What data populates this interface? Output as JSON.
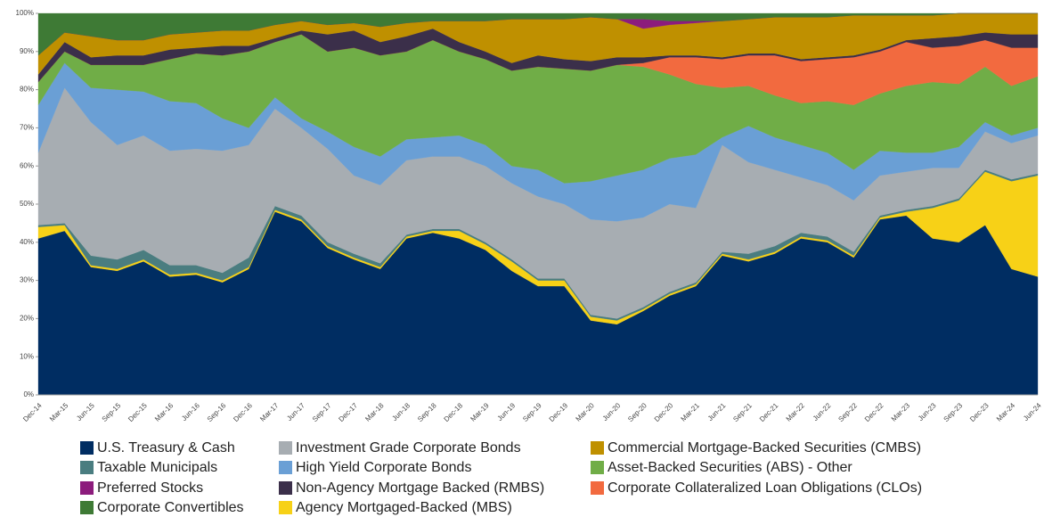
{
  "chart_data": {
    "type": "stacked_area",
    "categories": [
      "Dec-14",
      "Mar-15",
      "Jun-15",
      "Sep-15",
      "Dec-15",
      "Mar-16",
      "Jun-16",
      "Sep-16",
      "Dec-16",
      "Mar-17",
      "Jun-17",
      "Sep-17",
      "Dec-17",
      "Mar-18",
      "Jun-18",
      "Sep-18",
      "Dec-18",
      "Mar-19",
      "Jun-19",
      "Sep-19",
      "Dec-19",
      "Mar-20",
      "Jun-20",
      "Sep-20",
      "Dec-20",
      "Mar-21",
      "Jun-21",
      "Sep-21",
      "Dec-21",
      "Mar-22",
      "Jun-22",
      "Sep-22",
      "Dec-22",
      "Mar-23",
      "Jun-23",
      "Sep-23",
      "Dec-23",
      "Mar-24",
      "Jun-24"
    ],
    "series": [
      {
        "name": "U.S. Treasury & Cash",
        "color": "#002d62",
        "values": [
          41,
          43,
          33.5,
          32.5,
          35,
          31,
          31.5,
          29.5,
          33,
          48,
          45.5,
          38.5,
          35.5,
          33,
          41,
          42.5,
          41,
          38,
          32.5,
          28.5,
          28.5,
          19.5,
          18.5,
          22,
          26,
          28.5,
          36.5,
          35,
          37,
          41,
          40,
          36,
          46,
          47,
          41,
          40,
          44.5,
          33,
          31
        ]
      },
      {
        "name": "Investment Grade Corporate Bonds",
        "color": "#a7adb2",
        "values": [
          19,
          35.5,
          35,
          30,
          30,
          30,
          30.5,
          32,
          29.5,
          25.5,
          23,
          24.5,
          20.5,
          20.5,
          19.5,
          19,
          19,
          20,
          20,
          21.5,
          19.5,
          25,
          25.5,
          23.5,
          23,
          19.5,
          28,
          24,
          20,
          14.5,
          13.5,
          13.5,
          10.5,
          10,
          10,
          8,
          10,
          9.5,
          10
        ]
      },
      {
        "name": "Commercial Mortgage-Backed Securities (CMBS)",
        "color": "#bf9000",
        "values": [
          5,
          2.5,
          5.5,
          4,
          4,
          4,
          4,
          4,
          4,
          3.5,
          2.5,
          2.5,
          2,
          4,
          3.5,
          2,
          5.5,
          8,
          11.5,
          9.5,
          10.5,
          11.5,
          10,
          7.5,
          8,
          8.5,
          9.5,
          9,
          9.5,
          11,
          10.5,
          10.5,
          9,
          6.5,
          6,
          6,
          5,
          5.5,
          5.5
        ]
      },
      {
        "name": "Taxable Municipals",
        "color": "#4a7d80",
        "values": [
          0.5,
          0.5,
          2.5,
          2.5,
          2.5,
          2.5,
          2,
          2,
          2.5,
          1,
          1,
          1,
          1,
          1,
          0.5,
          0.5,
          0.5,
          0.5,
          0.5,
          0.5,
          0.5,
          0.5,
          0.5,
          0.5,
          0.5,
          0.5,
          0.5,
          1.5,
          1.5,
          1,
          1,
          1,
          0.5,
          0.5,
          0.5,
          0.5,
          0.5,
          0.5,
          0.5
        ]
      },
      {
        "name": "High Yield Corporate Bonds",
        "color": "#6a9fd5",
        "values": [
          12.5,
          6.5,
          9,
          14.5,
          11.5,
          13,
          12,
          8.5,
          4.5,
          3,
          2.5,
          4.5,
          7.5,
          7.5,
          5.5,
          5,
          5.5,
          5.5,
          4.5,
          7,
          5.5,
          10,
          12,
          12.5,
          12,
          14,
          2,
          9.5,
          8.5,
          8.5,
          8.5,
          8,
          6.5,
          5,
          4,
          5.5,
          2.5,
          2,
          2
        ]
      },
      {
        "name": "Asset-Backed Securities (ABS) - Other",
        "color": "#70ad47",
        "values": [
          6,
          3,
          6,
          6.5,
          7,
          11,
          13,
          16.5,
          20,
          14.5,
          22,
          21,
          26,
          26.5,
          23,
          25.5,
          22,
          22.5,
          25,
          27,
          30,
          29,
          29,
          27,
          22,
          18.5,
          13,
          10.5,
          11,
          11,
          13.5,
          17,
          15,
          17.5,
          18.5,
          16.5,
          14.5,
          13,
          13.5
        ]
      },
      {
        "name": "Preferred Stocks",
        "color": "#8c1c7c",
        "values": [
          0,
          0,
          0,
          0,
          0,
          0,
          0,
          0,
          0,
          0,
          0,
          0,
          0,
          0,
          0,
          0,
          0,
          0,
          0,
          0,
          0,
          0,
          0,
          2.5,
          1,
          0.5,
          0,
          0,
          0,
          0,
          0,
          0,
          0,
          0,
          0,
          0,
          0,
          0,
          0
        ]
      },
      {
        "name": "Non-Agency Mortgage Backed (RMBS)",
        "color": "#3b2f4a",
        "values": [
          2,
          2.5,
          2,
          2.5,
          2.5,
          2.5,
          1.5,
          2.5,
          1.5,
          1,
          1,
          4.5,
          4.5,
          3.5,
          4,
          3,
          2.5,
          2,
          2,
          3,
          2.5,
          2.5,
          2,
          1.5,
          0.5,
          0.5,
          0.5,
          0.5,
          0.5,
          0.5,
          0.5,
          0.5,
          0.5,
          0.5,
          2.5,
          2.5,
          2,
          3.5,
          3.5
        ]
      },
      {
        "name": "Corporate Collateralized Loan Obligations (CLOs)",
        "color": "#f26a3f",
        "values": [
          0,
          0,
          0,
          0,
          0,
          0,
          0,
          0,
          0,
          0,
          0,
          0,
          0,
          0,
          0,
          0,
          0,
          0,
          0,
          0,
          0,
          0,
          0,
          1,
          4.5,
          7,
          7.5,
          8,
          10.5,
          11,
          11,
          12.5,
          11,
          11.5,
          9,
          10,
          7,
          10,
          7.5
        ]
      },
      {
        "name": "Corporate Convertibles",
        "color": "#3e7a35",
        "values": [
          11,
          5,
          6,
          7,
          7,
          5.5,
          5,
          4.5,
          4.5,
          3,
          2,
          3,
          2.5,
          3.5,
          2.5,
          2,
          2,
          2,
          1.5,
          1.5,
          1.5,
          1,
          1.5,
          1.5,
          2,
          2,
          2,
          1.5,
          1,
          1,
          1,
          0.5,
          0.5,
          0.5,
          0.5,
          0,
          0,
          0,
          0
        ]
      },
      {
        "name": "Agency Mortgaged-Backed (MBS)",
        "color": "#f7d117",
        "values": [
          3,
          1.5,
          0.5,
          0.5,
          0.5,
          0.5,
          0.5,
          0.5,
          0.5,
          0.5,
          0.5,
          0.5,
          0.5,
          0.5,
          0.5,
          0.5,
          2,
          1.5,
          2.5,
          1.5,
          1.5,
          1,
          1,
          0.5,
          0.5,
          0.5,
          0.5,
          0.5,
          0.5,
          0.5,
          0.5,
          0.5,
          0.5,
          1,
          8,
          11,
          14,
          23,
          26.5
        ]
      }
    ],
    "ylim": [
      0,
      100
    ],
    "yticks": [
      {
        "value": 0,
        "label": "0%"
      },
      {
        "value": 10,
        "label": "10%"
      },
      {
        "value": 20,
        "label": "20%"
      },
      {
        "value": 30,
        "label": "30%"
      },
      {
        "value": 40,
        "label": "40%"
      },
      {
        "value": 50,
        "label": "50%"
      },
      {
        "value": 60,
        "label": "60%"
      },
      {
        "value": 70,
        "label": "70%"
      },
      {
        "value": 80,
        "label": "80%"
      },
      {
        "value": 90,
        "label": "90%"
      },
      {
        "value": 100,
        "label": "100%"
      }
    ]
  }
}
